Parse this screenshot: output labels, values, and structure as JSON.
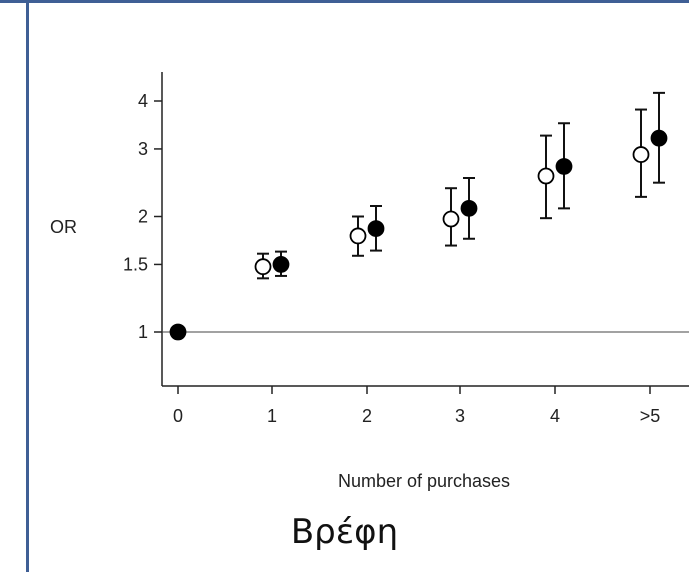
{
  "caption": "Βρέφη",
  "chart_data": {
    "type": "scatter",
    "xlabel": "Number of purchases",
    "ylabel": "OR",
    "y_scale": "log",
    "ylim": [
      0.8,
      4.6
    ],
    "categories": [
      "0",
      "1",
      "2",
      "3",
      "4",
      ">5"
    ],
    "yticks": [
      1,
      1.5,
      2,
      3,
      4
    ],
    "ytick_labels": [
      "1",
      "1.5",
      "2",
      "3",
      "4"
    ],
    "reference_line": 1,
    "series": [
      {
        "marker": "open-circle",
        "points": [
          {
            "x": "1",
            "y": 1.48,
            "low": 1.38,
            "high": 1.6
          },
          {
            "x": "2",
            "y": 1.78,
            "low": 1.58,
            "high": 2.0
          },
          {
            "x": "3",
            "y": 1.97,
            "low": 1.68,
            "high": 2.37
          },
          {
            "x": "4",
            "y": 2.55,
            "low": 1.98,
            "high": 3.25
          },
          {
            "x": ">5",
            "y": 2.9,
            "low": 2.25,
            "high": 3.8
          }
        ]
      },
      {
        "marker": "filled-circle",
        "points": [
          {
            "x": "0",
            "y": 1.0
          },
          {
            "x": "1",
            "y": 1.5,
            "low": 1.4,
            "high": 1.62
          },
          {
            "x": "2",
            "y": 1.86,
            "low": 1.63,
            "high": 2.13
          },
          {
            "x": "3",
            "y": 2.1,
            "low": 1.75,
            "high": 2.52
          },
          {
            "x": "4",
            "y": 2.7,
            "low": 2.1,
            "high": 3.5
          },
          {
            "x": ">5",
            "y": 3.2,
            "low": 2.45,
            "high": 4.2
          }
        ]
      }
    ]
  }
}
